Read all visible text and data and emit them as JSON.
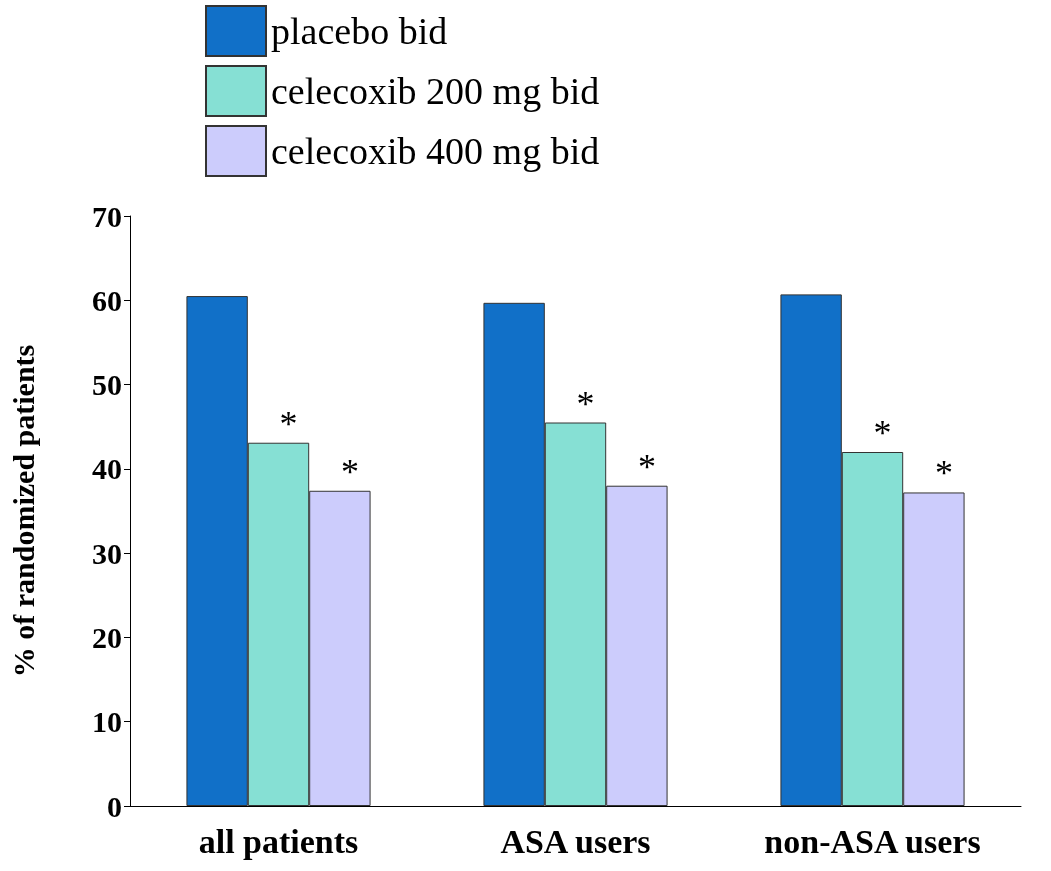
{
  "chart_data": {
    "type": "bar",
    "ylabel": "% of randomized patients",
    "categories": [
      "all patients",
      "ASA users",
      "non-ASA users"
    ],
    "series": [
      {
        "name": "placebo bid",
        "color": "#1170c8",
        "values": [
          60.5,
          59.7,
          60.7
        ]
      },
      {
        "name": "celecoxib 200 mg bid",
        "color": "#86e0d4",
        "values": [
          43.1,
          45.5,
          42
        ],
        "value_labels": [
          "*",
          "*",
          "*"
        ]
      },
      {
        "name": "celecoxib 400 mg bid",
        "color": "#ccccfc",
        "values": [
          37.4,
          38,
          37.2
        ],
        "value_labels": [
          "*",
          "*",
          "*"
        ]
      }
    ],
    "ylim": [
      0,
      70
    ],
    "yticks": [
      0,
      10,
      20,
      30,
      40,
      50,
      60,
      70
    ],
    "grid": false,
    "legend": "top"
  }
}
